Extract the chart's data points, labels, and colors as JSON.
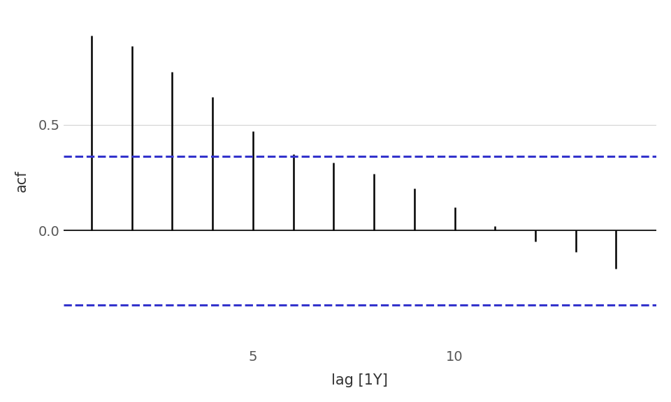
{
  "lags": [
    1,
    2,
    3,
    4,
    5,
    6,
    7,
    8,
    9,
    10,
    11,
    12,
    13,
    14
  ],
  "acf_values": [
    0.92,
    0.87,
    0.75,
    0.63,
    0.47,
    0.36,
    0.32,
    0.27,
    0.2,
    0.11,
    0.02,
    -0.05,
    -0.1,
    -0.18
  ],
  "confidence_upper": 0.35,
  "confidence_lower": -0.35,
  "xlabel": "lag [1Y]",
  "ylabel": "acf",
  "ylim": [
    -0.55,
    1.02
  ],
  "xlim": [
    0.3,
    15.0
  ],
  "xticks": [
    5,
    10
  ],
  "yticks": [
    0.0,
    0.5
  ],
  "background_color": "#ffffff",
  "grid_color": "#d3d3d3",
  "bar_color": "#000000",
  "conf_color": "#3333cc",
  "conf_linewidth": 2.2,
  "conf_linestyle": "dashed",
  "bar_linewidth": 1.8,
  "label_fontsize": 15,
  "tick_fontsize": 14
}
